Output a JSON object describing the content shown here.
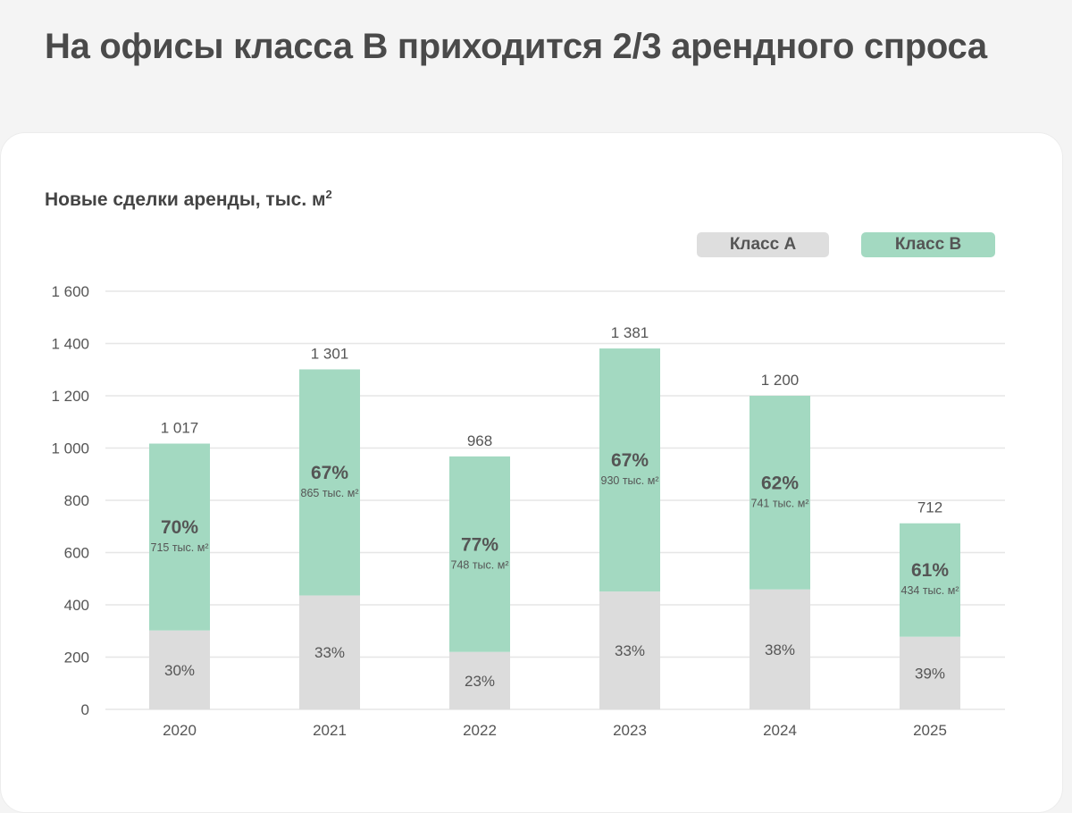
{
  "title": "На офисы класса B приходится 2/3 арендного спроса",
  "chart_data": {
    "type": "bar",
    "stacked": true,
    "title": "Новые сделки аренды, тыс. м",
    "title_superscript": "2",
    "xlabel": "",
    "ylabel": "",
    "ylim": [
      0,
      1600
    ],
    "yticks": [
      0,
      200,
      400,
      600,
      800,
      1000,
      1200,
      1400,
      1600
    ],
    "ytick_labels": [
      "0",
      "200",
      "400",
      "600",
      "800",
      "1 000",
      "1 200",
      "1 400",
      "1 600"
    ],
    "categories": [
      "2020",
      "2021",
      "2022",
      "2023",
      "2024",
      "2025"
    ],
    "legend_position": "top-right",
    "colors": {
      "class_a": "#dcdcdc",
      "class_b": "#a3d9c1",
      "grid": "#e6e6e6"
    },
    "series": [
      {
        "name": "Класс A",
        "values": [
          302,
          436,
          220,
          451,
          459,
          278
        ],
        "labels": [
          "30%",
          "33%",
          "23%",
          "33%",
          "38%",
          "39%"
        ]
      },
      {
        "name": "Класс B",
        "values": [
          715,
          865,
          748,
          930,
          741,
          434
        ],
        "labels": [
          "70%",
          "67%",
          "77%",
          "67%",
          "62%",
          "61%"
        ],
        "sublabels": [
          "715 тыс. м²",
          "865 тыс. м²",
          "748 тыс. м²",
          "930 тыс. м²",
          "741 тыс. м²",
          "434 тыс. м²"
        ]
      }
    ],
    "totals": [
      1017,
      1301,
      968,
      1381,
      1200,
      712
    ],
    "total_labels": [
      "1 017",
      "1 301",
      "968",
      "1 381",
      "1 200",
      "712"
    ]
  }
}
